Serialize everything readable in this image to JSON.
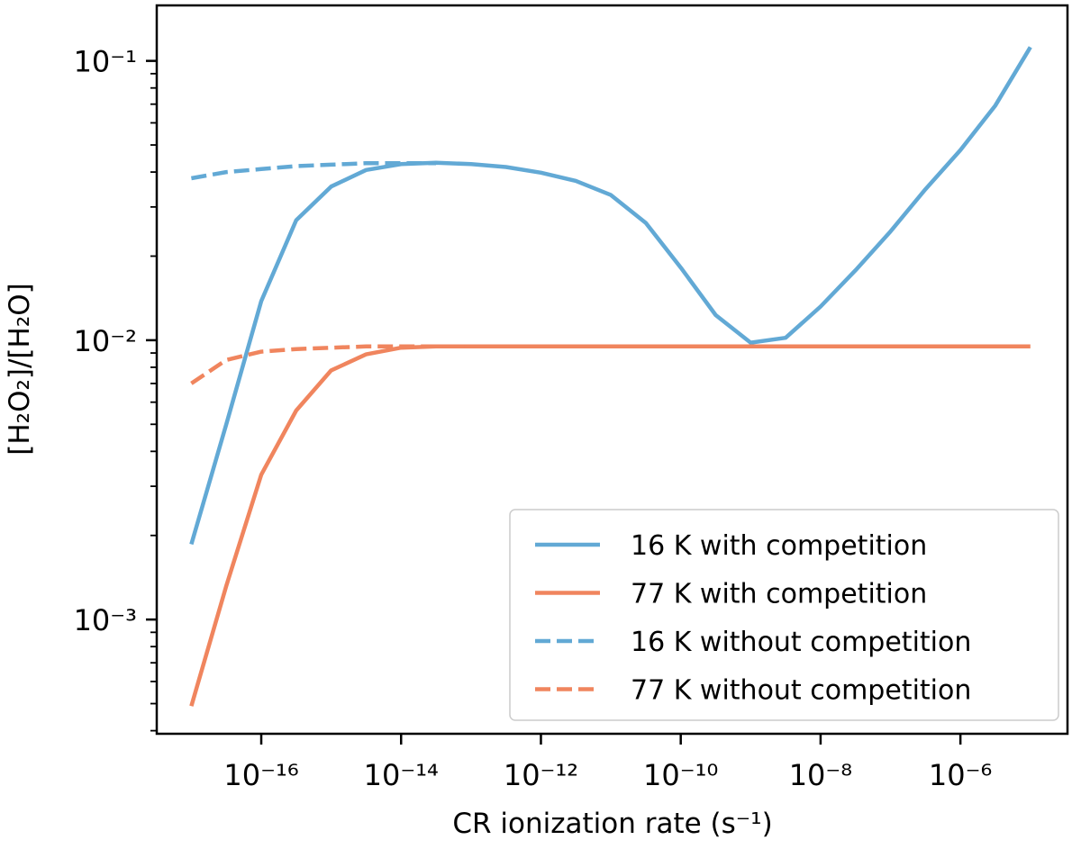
{
  "chart_data": {
    "type": "line",
    "title": "",
    "xlabel": "CR ionization rate (s⁻¹)",
    "ylabel": "[H₂O₂]/[H₂O]",
    "xscale": "log",
    "yscale": "log",
    "xlim": [
      3.2e-18,
      3.4e-05
    ],
    "ylim": [
      0.00039,
      0.158
    ],
    "xticks": [
      {
        "value": 1e-16,
        "label": "10⁻¹⁶"
      },
      {
        "value": 1e-14,
        "label": "10⁻¹⁴"
      },
      {
        "value": 1e-12,
        "label": "10⁻¹²"
      },
      {
        "value": 1e-10,
        "label": "10⁻¹⁰"
      },
      {
        "value": 1e-08,
        "label": "10⁻⁸"
      },
      {
        "value": 1e-06,
        "label": "10⁻⁶"
      }
    ],
    "yticks": [
      {
        "value": 0.1,
        "label": "10⁻¹"
      },
      {
        "value": 0.01,
        "label": "10⁻²"
      },
      {
        "value": 0.001,
        "label": "10⁻³"
      }
    ],
    "grid": false,
    "legend_position": "bottom-right",
    "series": [
      {
        "name": "16 K with competition",
        "color": "#62a9d5",
        "dash": "solid",
        "x": [
          1e-17,
          3.16e-17,
          1e-16,
          3.16e-16,
          1e-15,
          3.16e-15,
          1e-14,
          3.16e-14,
          1e-13,
          3.16e-13,
          1e-12,
          3.16e-12,
          1e-11,
          3.16e-11,
          1e-10,
          3.16e-10,
          1e-09,
          3.16e-09,
          1e-08,
          3.16e-08,
          1e-07,
          3.16e-07,
          1e-06,
          3.16e-06,
          1e-05
        ],
        "y": [
          0.00186,
          0.005,
          0.0138,
          0.0269,
          0.0355,
          0.0407,
          0.0427,
          0.0432,
          0.0427,
          0.0417,
          0.0398,
          0.0372,
          0.0331,
          0.0263,
          0.0182,
          0.0123,
          0.0098,
          0.0102,
          0.0132,
          0.0178,
          0.0245,
          0.0347,
          0.0479,
          0.0692,
          0.112
        ]
      },
      {
        "name": "77 K with competition",
        "color": "#f0855e",
        "dash": "solid",
        "x": [
          1e-17,
          3.16e-17,
          1e-16,
          3.16e-16,
          1e-15,
          3.16e-15,
          1e-14,
          3.16e-14,
          1e-13,
          3.16e-13,
          1e-12,
          3.16e-12,
          1e-11,
          3.16e-11,
          1e-10,
          3.16e-10,
          1e-09,
          3.16e-09,
          1e-08,
          3.16e-08,
          1e-07,
          3.16e-07,
          1e-06,
          3.16e-06,
          1e-05
        ],
        "y": [
          0.00049,
          0.00132,
          0.0033,
          0.0056,
          0.0078,
          0.0089,
          0.0094,
          0.0095,
          0.0095,
          0.0095,
          0.0095,
          0.0095,
          0.0095,
          0.0095,
          0.0095,
          0.0095,
          0.0095,
          0.0095,
          0.0095,
          0.0095,
          0.0095,
          0.0095,
          0.0095,
          0.0095,
          0.0095
        ]
      },
      {
        "name": "16 K without competition",
        "color": "#62a9d5",
        "dash": "dashed",
        "x": [
          1e-17,
          3.16e-17,
          1e-16,
          3.16e-16,
          1e-15,
          3.16e-15,
          1e-14,
          3.16e-14
        ],
        "y": [
          0.038,
          0.04,
          0.041,
          0.042,
          0.0425,
          0.043,
          0.043,
          0.043
        ]
      },
      {
        "name": "77 K without competition",
        "color": "#f0855e",
        "dash": "dashed",
        "x": [
          1e-17,
          3.16e-17,
          1e-16,
          3.16e-16,
          1e-15,
          3.16e-15,
          1e-14,
          3.16e-14,
          1e-13
        ],
        "y": [
          0.007,
          0.0085,
          0.0091,
          0.0093,
          0.0094,
          0.0095,
          0.0095,
          0.0095,
          0.0095
        ]
      }
    ]
  }
}
